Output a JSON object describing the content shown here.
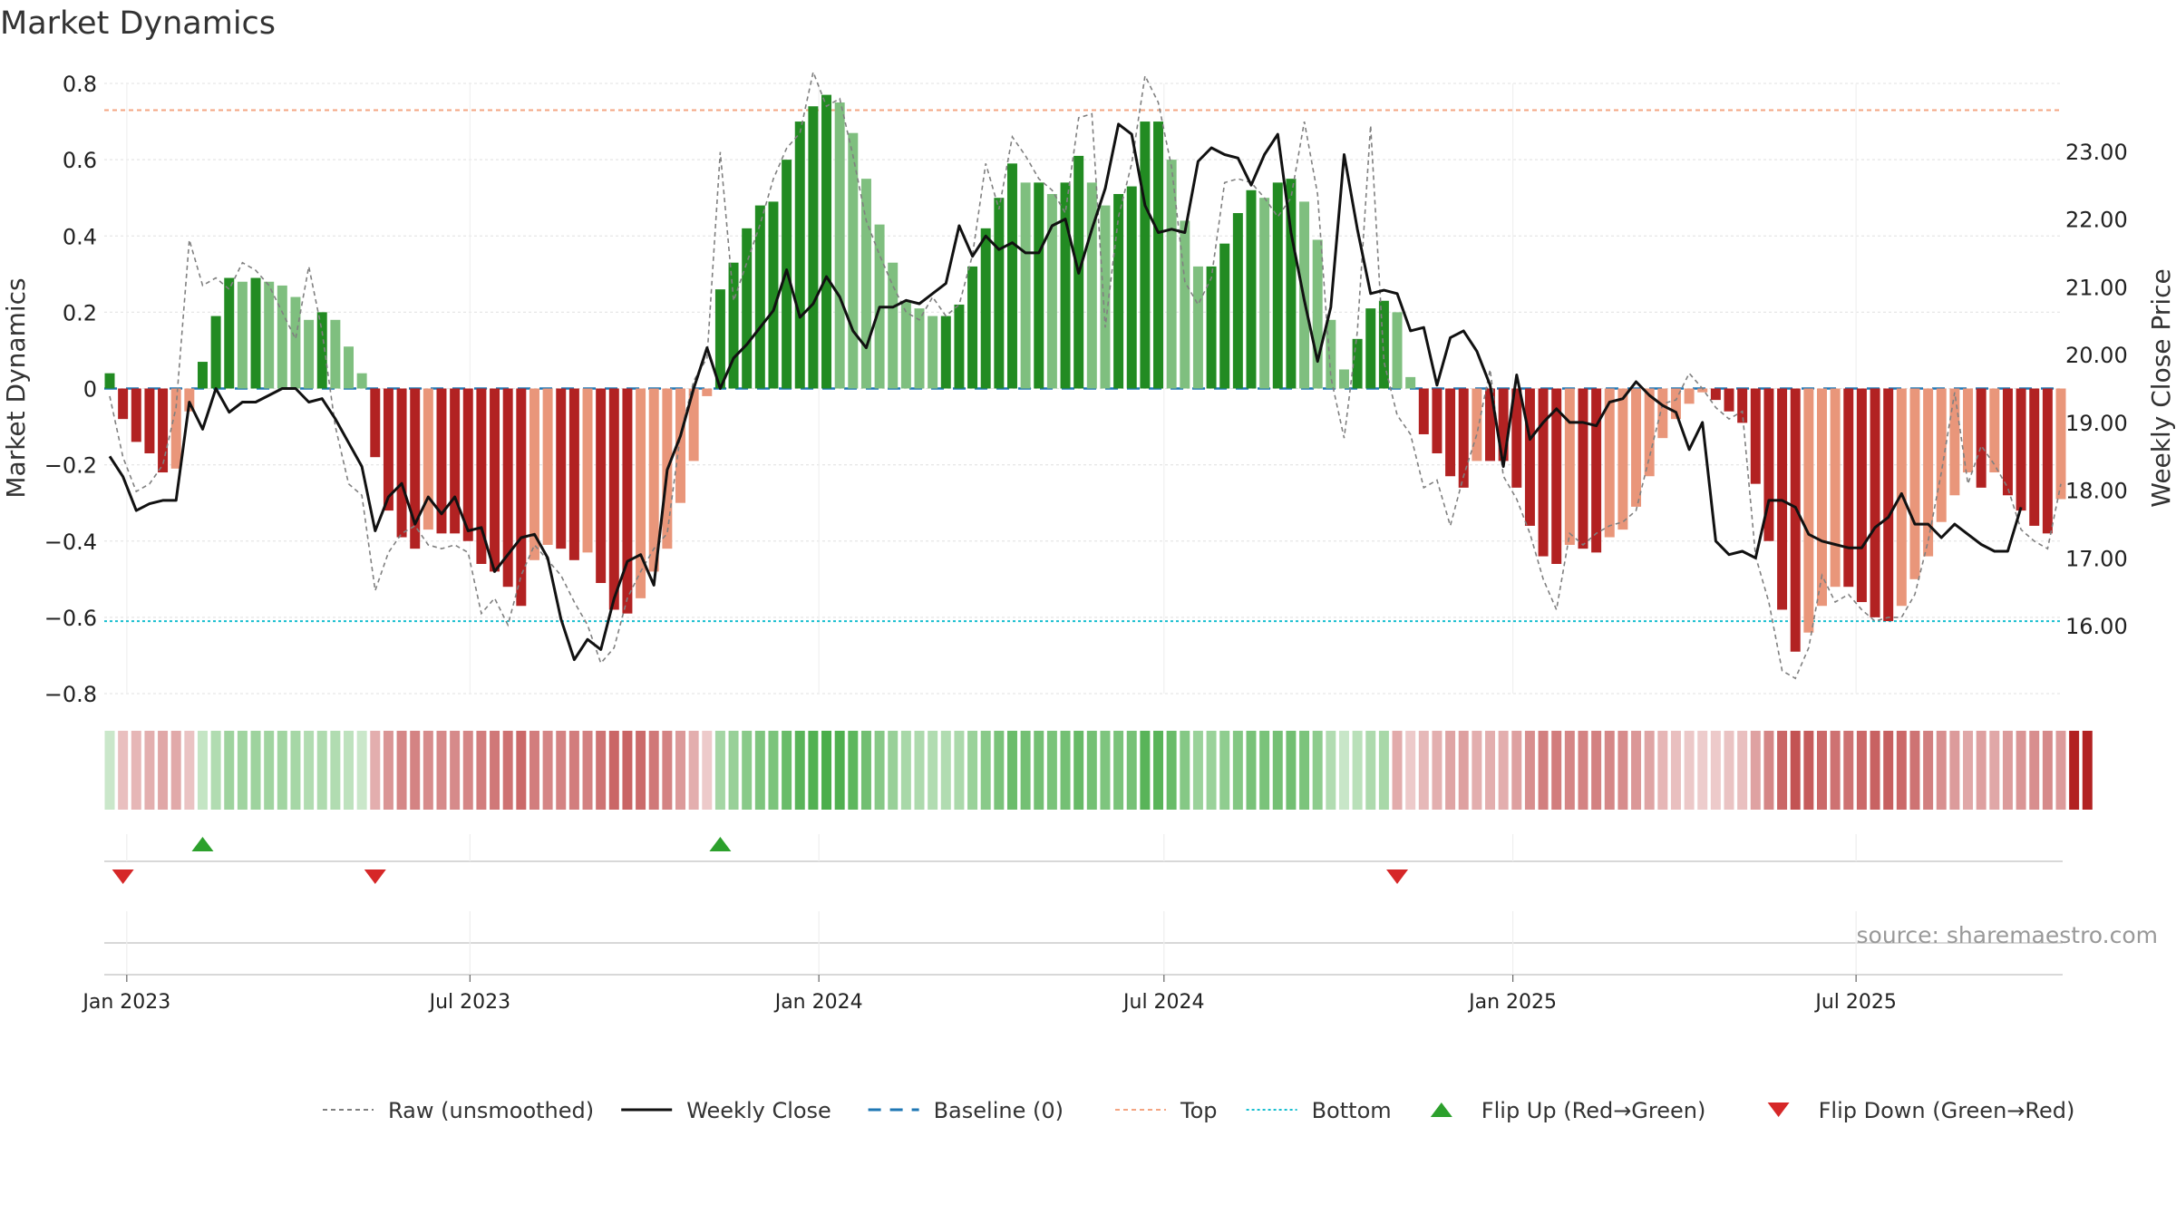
{
  "title": "Market Dynamics",
  "source": "source: sharemaestro.com",
  "colors": {
    "strong_green": "#228b22",
    "light_green": "#7fbf7f",
    "strong_red": "#b22222",
    "light_red": "#e9967a",
    "raw": "#808080",
    "close": "#111111",
    "baseline": "#1f77b4",
    "top": "#f4a582",
    "bottom": "#17becf",
    "flip_up": "#2ca02c",
    "flip_down": "#d62728"
  },
  "chart_data": {
    "type": "bar",
    "title": "Market Dynamics",
    "ylabel": "Market Dynamics",
    "y2label": "Weekly Close Price",
    "ylim": [
      -0.8,
      0.8
    ],
    "y2lim": [
      15.0,
      24.0
    ],
    "yticks": [
      "0.8",
      "0.6",
      "0.4",
      "0.2",
      "0",
      "−0.2",
      "−0.4",
      "−0.6",
      "−0.8"
    ],
    "y2ticks": [
      "23.00",
      "22.00",
      "21.00",
      "20.00",
      "19.00",
      "18.00",
      "17.00",
      "16.00"
    ],
    "x_start": "2022-12-23",
    "x_step_days": 7,
    "xtick_labels": [
      "Jan 2023",
      "Jul 2023",
      "Jan 2024",
      "Jul 2024",
      "Jan 2025",
      "Jul 2025"
    ],
    "xtick_dates": [
      "2023-01-01",
      "2023-07-01",
      "2024-01-01",
      "2024-07-01",
      "2025-01-01",
      "2025-07-01"
    ],
    "top_line": 0.73,
    "bottom_line": -0.61,
    "baseline": 0,
    "grid": true,
    "legend_position": "bottom",
    "legend": [
      "Raw (unsmoothed)",
      "Weekly Close",
      "Baseline (0)",
      "Top",
      "Bottom",
      "Flip Up (Red→Green)",
      "Flip Down (Green→Red)"
    ],
    "series": [
      {
        "name": "Market Dynamics",
        "values": [
          0.04,
          -0.08,
          -0.14,
          -0.17,
          -0.22,
          -0.21,
          -0.06,
          0.07,
          0.19,
          0.29,
          0.28,
          0.29,
          0.28,
          0.27,
          0.24,
          0.18,
          0.2,
          0.18,
          0.11,
          0.04,
          -0.18,
          -0.32,
          -0.39,
          -0.42,
          -0.37,
          -0.38,
          -0.38,
          -0.4,
          -0.46,
          -0.48,
          -0.52,
          -0.57,
          -0.45,
          -0.41,
          -0.42,
          -0.45,
          -0.43,
          -0.51,
          -0.58,
          -0.59,
          -0.55,
          -0.48,
          -0.42,
          -0.3,
          -0.19,
          -0.02,
          0.26,
          0.33,
          0.42,
          0.48,
          0.49,
          0.6,
          0.7,
          0.74,
          0.77,
          0.75,
          0.67,
          0.55,
          0.43,
          0.33,
          0.23,
          0.21,
          0.19,
          0.19,
          0.22,
          0.32,
          0.42,
          0.5,
          0.59,
          0.54,
          0.54,
          0.51,
          0.54,
          0.61,
          0.54,
          0.48,
          0.51,
          0.53,
          0.7,
          0.7,
          0.6,
          0.44,
          0.32,
          0.32,
          0.38,
          0.46,
          0.52,
          0.5,
          0.54,
          0.55,
          0.49,
          0.39,
          0.18,
          0.05,
          0.13,
          0.21,
          0.23,
          0.2,
          0.03,
          -0.12,
          -0.17,
          -0.23,
          -0.26,
          -0.19,
          -0.19,
          -0.19,
          -0.26,
          -0.36,
          -0.44,
          -0.46,
          -0.41,
          -0.42,
          -0.43,
          -0.39,
          -0.37,
          -0.31,
          -0.23,
          -0.13,
          -0.08,
          -0.04,
          -0.01,
          -0.03,
          -0.06,
          -0.09,
          -0.25,
          -0.4,
          -0.58,
          -0.69,
          -0.64,
          -0.57,
          -0.52,
          -0.52,
          -0.56,
          -0.6,
          -0.61,
          -0.57,
          -0.5,
          -0.44,
          -0.35,
          -0.28,
          -0.22,
          -0.26,
          -0.22,
          -0.28,
          -0.32,
          -0.36,
          -0.38,
          -0.29
        ]
      },
      {
        "name": "Raw (unsmoothed)",
        "values": [
          -0.02,
          -0.18,
          -0.27,
          -0.25,
          -0.2,
          -0.05,
          0.39,
          0.27,
          0.29,
          0.26,
          0.33,
          0.31,
          0.27,
          0.2,
          0.13,
          0.32,
          0.15,
          -0.1,
          -0.25,
          -0.28,
          -0.53,
          -0.43,
          -0.38,
          -0.36,
          -0.41,
          -0.42,
          -0.41,
          -0.43,
          -0.59,
          -0.55,
          -0.62,
          -0.49,
          -0.41,
          -0.45,
          -0.49,
          -0.56,
          -0.62,
          -0.72,
          -0.68,
          -0.55,
          -0.48,
          -0.42,
          -0.38,
          -0.12,
          0.02,
          0.08,
          0.62,
          0.23,
          0.33,
          0.43,
          0.55,
          0.63,
          0.67,
          0.83,
          0.74,
          0.76,
          0.61,
          0.44,
          0.35,
          0.27,
          0.2,
          0.18,
          0.24,
          0.19,
          0.22,
          0.35,
          0.59,
          0.47,
          0.66,
          0.61,
          0.55,
          0.52,
          0.46,
          0.71,
          0.72,
          0.16,
          0.45,
          0.59,
          0.82,
          0.75,
          0.58,
          0.28,
          0.22,
          0.29,
          0.54,
          0.55,
          0.54,
          0.5,
          0.45,
          0.5,
          0.7,
          0.51,
          0.03,
          -0.13,
          0.15,
          0.69,
          0.07,
          -0.07,
          -0.12,
          -0.26,
          -0.24,
          -0.36,
          -0.23,
          -0.12,
          0.05,
          -0.23,
          -0.29,
          -0.38,
          -0.5,
          -0.58,
          -0.38,
          -0.41,
          -0.38,
          -0.36,
          -0.35,
          -0.32,
          -0.18,
          -0.04,
          -0.03,
          0.04,
          0.0,
          -0.05,
          -0.08,
          -0.06,
          -0.44,
          -0.56,
          -0.74,
          -0.76,
          -0.68,
          -0.49,
          -0.56,
          -0.54,
          -0.58,
          -0.61,
          -0.6,
          -0.6,
          -0.54,
          -0.4,
          -0.22,
          -0.01,
          -0.25,
          -0.15,
          -0.2,
          -0.26,
          -0.37,
          -0.4,
          -0.42,
          -0.25
        ]
      },
      {
        "name": "Weekly Close",
        "axis": "right",
        "values": [
          18.5,
          18.2,
          17.7,
          17.8,
          17.85,
          17.85,
          19.3,
          18.9,
          19.5,
          19.15,
          19.3,
          19.3,
          19.4,
          19.5,
          19.5,
          19.3,
          19.35,
          19.05,
          18.7,
          18.35,
          17.4,
          17.9,
          18.1,
          17.5,
          17.9,
          17.65,
          17.9,
          17.4,
          17.45,
          16.8,
          17.05,
          17.3,
          17.35,
          17.0,
          16.1,
          15.5,
          15.8,
          15.65,
          16.4,
          16.95,
          17.05,
          16.6,
          18.3,
          18.8,
          19.5,
          20.1,
          19.5,
          19.95,
          20.15,
          20.4,
          20.65,
          21.25,
          20.55,
          20.75,
          21.15,
          20.85,
          20.35,
          20.1,
          20.7,
          20.7,
          20.8,
          20.75,
          20.9,
          21.05,
          21.9,
          21.45,
          21.75,
          21.55,
          21.65,
          21.5,
          21.5,
          21.9,
          22.0,
          21.2,
          21.85,
          22.45,
          23.4,
          23.25,
          22.2,
          21.8,
          21.85,
          21.8,
          22.85,
          23.05,
          22.95,
          22.9,
          22.5,
          22.95,
          23.25,
          21.8,
          20.8,
          19.9,
          20.7,
          22.95,
          21.85,
          20.9,
          20.95,
          20.9,
          20.35,
          20.4,
          19.55,
          20.25,
          20.35,
          20.05,
          19.55,
          18.35,
          19.7,
          18.75,
          19.0,
          19.2,
          19.0,
          19.0,
          18.95,
          19.3,
          19.35,
          19.6,
          19.4,
          19.25,
          19.15,
          18.6,
          19.0,
          17.25,
          17.05,
          17.1,
          17.0,
          17.85,
          17.85,
          17.75,
          17.35,
          17.25,
          17.2,
          17.15,
          17.15,
          17.45,
          17.6,
          17.95,
          17.5,
          17.5,
          17.3,
          17.5,
          17.35,
          17.2,
          17.1,
          17.1,
          17.75
        ]
      },
      {
        "name": "Flip Up (Red→Green)",
        "indices": [
          7,
          46
        ]
      },
      {
        "name": "Flip Down (Green→Red)",
        "indices": [
          1,
          20,
          97
        ]
      }
    ],
    "regime_strip": {
      "signs": [
        1,
        -1,
        -1,
        -1,
        -1,
        -1,
        -1,
        1,
        1,
        1,
        1,
        1,
        1,
        1,
        1,
        1,
        1,
        1,
        1,
        1,
        -1,
        -1,
        -1,
        -1,
        -1,
        -1,
        -1,
        -1,
        -1,
        -1,
        -1,
        -1,
        -1,
        -1,
        -1,
        -1,
        -1,
        -1,
        -1,
        -1,
        -1,
        -1,
        -1,
        -1,
        -1,
        -1,
        1,
        1,
        1,
        1,
        1,
        1,
        1,
        1,
        1,
        1,
        1,
        1,
        1,
        1,
        1,
        1,
        1,
        1,
        1,
        1,
        1,
        1,
        1,
        1,
        1,
        1,
        1,
        1,
        1,
        1,
        1,
        1,
        1,
        1,
        1,
        1,
        1,
        1,
        1,
        1,
        1,
        1,
        1,
        1,
        1,
        1,
        1,
        1,
        1,
        1,
        1,
        -1,
        -1,
        -1,
        -1,
        -1,
        -1,
        -1,
        -1,
        -1,
        -1,
        -1,
        -1,
        -1,
        -1,
        -1,
        -1,
        -1,
        -1,
        -1,
        -1,
        -1,
        -1,
        -1,
        -1,
        -1,
        -1,
        -1,
        -1,
        -1,
        -1,
        -1,
        -1,
        -1,
        -1,
        -1,
        -1,
        -1,
        -1,
        -1,
        -1,
        -1,
        -1,
        -1,
        -1,
        -1,
        -1,
        -1,
        -1,
        -1,
        -1,
        -1,
        -1,
        -1
      ]
    }
  }
}
